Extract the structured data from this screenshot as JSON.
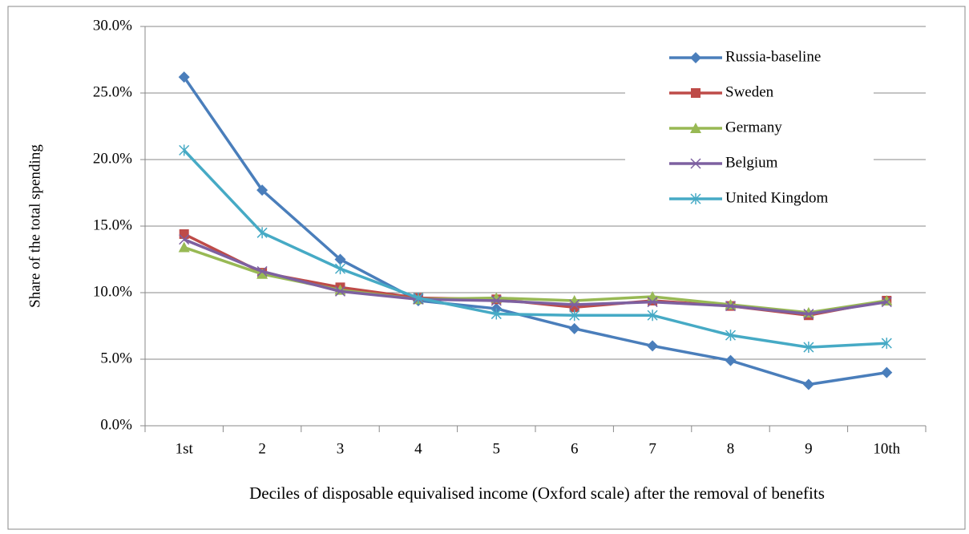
{
  "chart_data": {
    "type": "line",
    "x_label": "Deciles of disposable equivalised income (Oxford scale) after the removal of benefits",
    "y_label": "Share of the total spending",
    "categories": [
      "1st",
      "2",
      "3",
      "4",
      "5",
      "6",
      "7",
      "8",
      "9",
      "10th"
    ],
    "series": [
      {
        "name": "Russia-baseline",
        "color": "#4a7ebb",
        "marker": "diamond",
        "values": [
          26.2,
          17.7,
          12.5,
          9.4,
          8.8,
          7.3,
          6.0,
          4.9,
          3.1,
          4.0
        ]
      },
      {
        "name": "Sweden",
        "color": "#be4b48",
        "marker": "square",
        "values": [
          14.4,
          11.5,
          10.4,
          9.6,
          9.5,
          8.9,
          9.4,
          9.0,
          8.3,
          9.4
        ]
      },
      {
        "name": "Germany",
        "color": "#98b954",
        "marker": "triangle",
        "values": [
          13.4,
          11.4,
          10.2,
          9.5,
          9.6,
          9.4,
          9.7,
          9.1,
          8.5,
          9.4
        ]
      },
      {
        "name": "Belgium",
        "color": "#7d60a0",
        "marker": "x",
        "values": [
          14.0,
          11.6,
          10.1,
          9.5,
          9.4,
          9.1,
          9.3,
          9.0,
          8.4,
          9.3
        ]
      },
      {
        "name": "United Kingdom",
        "color": "#46aac5",
        "marker": "star",
        "values": [
          20.7,
          14.5,
          11.8,
          9.6,
          8.4,
          8.3,
          8.3,
          6.8,
          5.9,
          6.2
        ]
      }
    ],
    "ylim": [
      0,
      30
    ],
    "yticks": [
      {
        "value": 0,
        "label": "0.0%"
      },
      {
        "value": 5,
        "label": "5.0%"
      },
      {
        "value": 10,
        "label": "10.0%"
      },
      {
        "value": 15,
        "label": "15.0%"
      },
      {
        "value": 20,
        "label": "20.0%"
      },
      {
        "value": 25,
        "label": "25.0%"
      },
      {
        "value": 30,
        "label": "30.0%"
      }
    ],
    "grid": true,
    "legend": "top-right"
  }
}
